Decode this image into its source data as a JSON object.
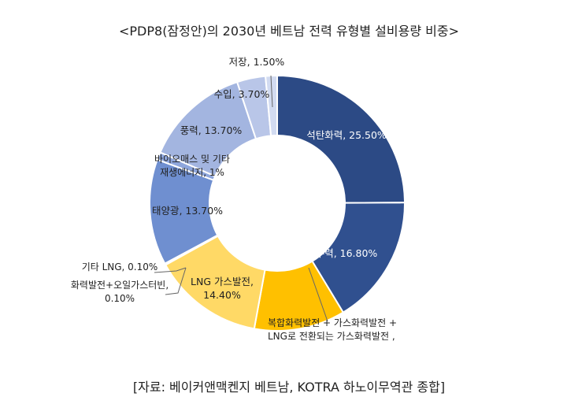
{
  "chart_data": {
    "type": "pie",
    "title": "<PDP8(잠정안)의 2030년 베트남 전력 유형별 설비용량 비중>",
    "source": "[자료: 베이커앤맥켄지 베트남, KOTRA 하노이무역관 종합]",
    "slices": [
      {
        "label": "석탄화력, 25.50%",
        "value": 25.5,
        "color": "#2c4a85"
      },
      {
        "label": "수력, 16.80%",
        "value": 16.8,
        "color": "#30508f"
      },
      {
        "label": "복합화력발전 + 가스화력발전 + LNG로 전환되는 가스화력발전 ,",
        "value": 11.8,
        "color": "#ffc000"
      },
      {
        "label": "LNG 가스발전, 14.40%",
        "value": 14.4,
        "color": "#ffd966"
      },
      {
        "label": "화력발전+오일가스터빈, 0.10%",
        "value": 0.1,
        "color": "#bfbfbf"
      },
      {
        "label": "기타 LNG, 0.10%",
        "value": 0.1,
        "color": "#a6a6a6"
      },
      {
        "label": "태양광, 13.70%",
        "value": 13.7,
        "color": "#6f8fd0"
      },
      {
        "label": "바이오매스 및 기타 재생에너지, 1%",
        "value": 1.0,
        "color": "#8ea6dc"
      },
      {
        "label": "풍력, 13.70%",
        "value": 13.7,
        "color": "#a3b5e0"
      },
      {
        "label": "수입, 3.70%",
        "value": 3.7,
        "color": "#b9c6e8"
      },
      {
        "label": "저장, 1.50%",
        "value": 1.5,
        "color": "#d2dbf1"
      }
    ]
  }
}
